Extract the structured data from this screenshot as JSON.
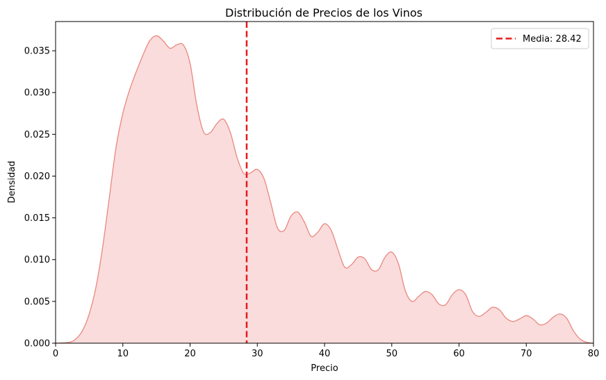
{
  "chart_data": {
    "type": "area",
    "title": "Distribución de Precios de los Vinos",
    "xlabel": "Precio",
    "ylabel": "Densidad",
    "xlim": [
      0,
      80
    ],
    "ylim": [
      0,
      0.0385
    ],
    "xticks": [
      0,
      10,
      20,
      30,
      40,
      50,
      60,
      70,
      80
    ],
    "xtick_labels": [
      "0",
      "10",
      "20",
      "30",
      "40",
      "50",
      "60",
      "70",
      "80"
    ],
    "yticks": [
      0,
      0.005,
      0.01,
      0.015,
      0.02,
      0.025,
      0.03,
      0.035
    ],
    "ytick_labels": [
      "0.000",
      "0.005",
      "0.010",
      "0.015",
      "0.020",
      "0.025",
      "0.030",
      "0.035"
    ],
    "grid": false,
    "legend_position": "top-right",
    "series": [
      {
        "style": "kde-filled",
        "line_color": "#e9877f",
        "fill_color": "#fadcdc",
        "x": [
          0,
          2,
          3,
          4,
          5,
          6,
          7,
          8,
          9,
          10,
          11,
          12,
          13,
          14,
          15,
          16,
          17,
          18,
          19,
          20,
          21,
          22,
          23,
          24,
          25,
          26,
          27,
          28,
          29,
          30,
          31,
          32,
          33,
          34,
          35,
          36,
          37,
          38,
          39,
          40,
          41,
          42,
          43,
          44,
          45,
          46,
          47,
          48,
          49,
          50,
          51,
          52,
          53,
          54,
          55,
          56,
          57,
          58,
          59,
          60,
          61,
          62,
          63,
          64,
          65,
          66,
          67,
          68,
          69,
          70,
          71,
          72,
          73,
          74,
          75,
          76,
          77,
          78,
          79,
          80
        ],
        "values": [
          0.0,
          0.0001,
          0.0005,
          0.0015,
          0.0035,
          0.0067,
          0.0115,
          0.0175,
          0.0235,
          0.0275,
          0.0303,
          0.0325,
          0.0345,
          0.0362,
          0.0368,
          0.0362,
          0.0353,
          0.0357,
          0.0357,
          0.0335,
          0.0285,
          0.0253,
          0.0252,
          0.0263,
          0.0268,
          0.0252,
          0.0222,
          0.0203,
          0.0204,
          0.0208,
          0.0197,
          0.0168,
          0.0138,
          0.0135,
          0.0152,
          0.0157,
          0.0145,
          0.0128,
          0.0133,
          0.0143,
          0.0135,
          0.0112,
          0.0091,
          0.0094,
          0.0103,
          0.0101,
          0.0088,
          0.0088,
          0.0103,
          0.0109,
          0.0095,
          0.0063,
          0.005,
          0.0056,
          0.0062,
          0.0058,
          0.0047,
          0.0046,
          0.0058,
          0.0064,
          0.0058,
          0.0038,
          0.0032,
          0.0037,
          0.0043,
          0.004,
          0.003,
          0.0026,
          0.0029,
          0.0033,
          0.0029,
          0.0022,
          0.0024,
          0.0031,
          0.0035,
          0.003,
          0.0015,
          0.0005,
          0.0001,
          0.0
        ]
      }
    ],
    "mean_line": {
      "value": 28.42,
      "label": "Media: 28.42",
      "color": "#e41a1c",
      "style": "dashed"
    }
  }
}
